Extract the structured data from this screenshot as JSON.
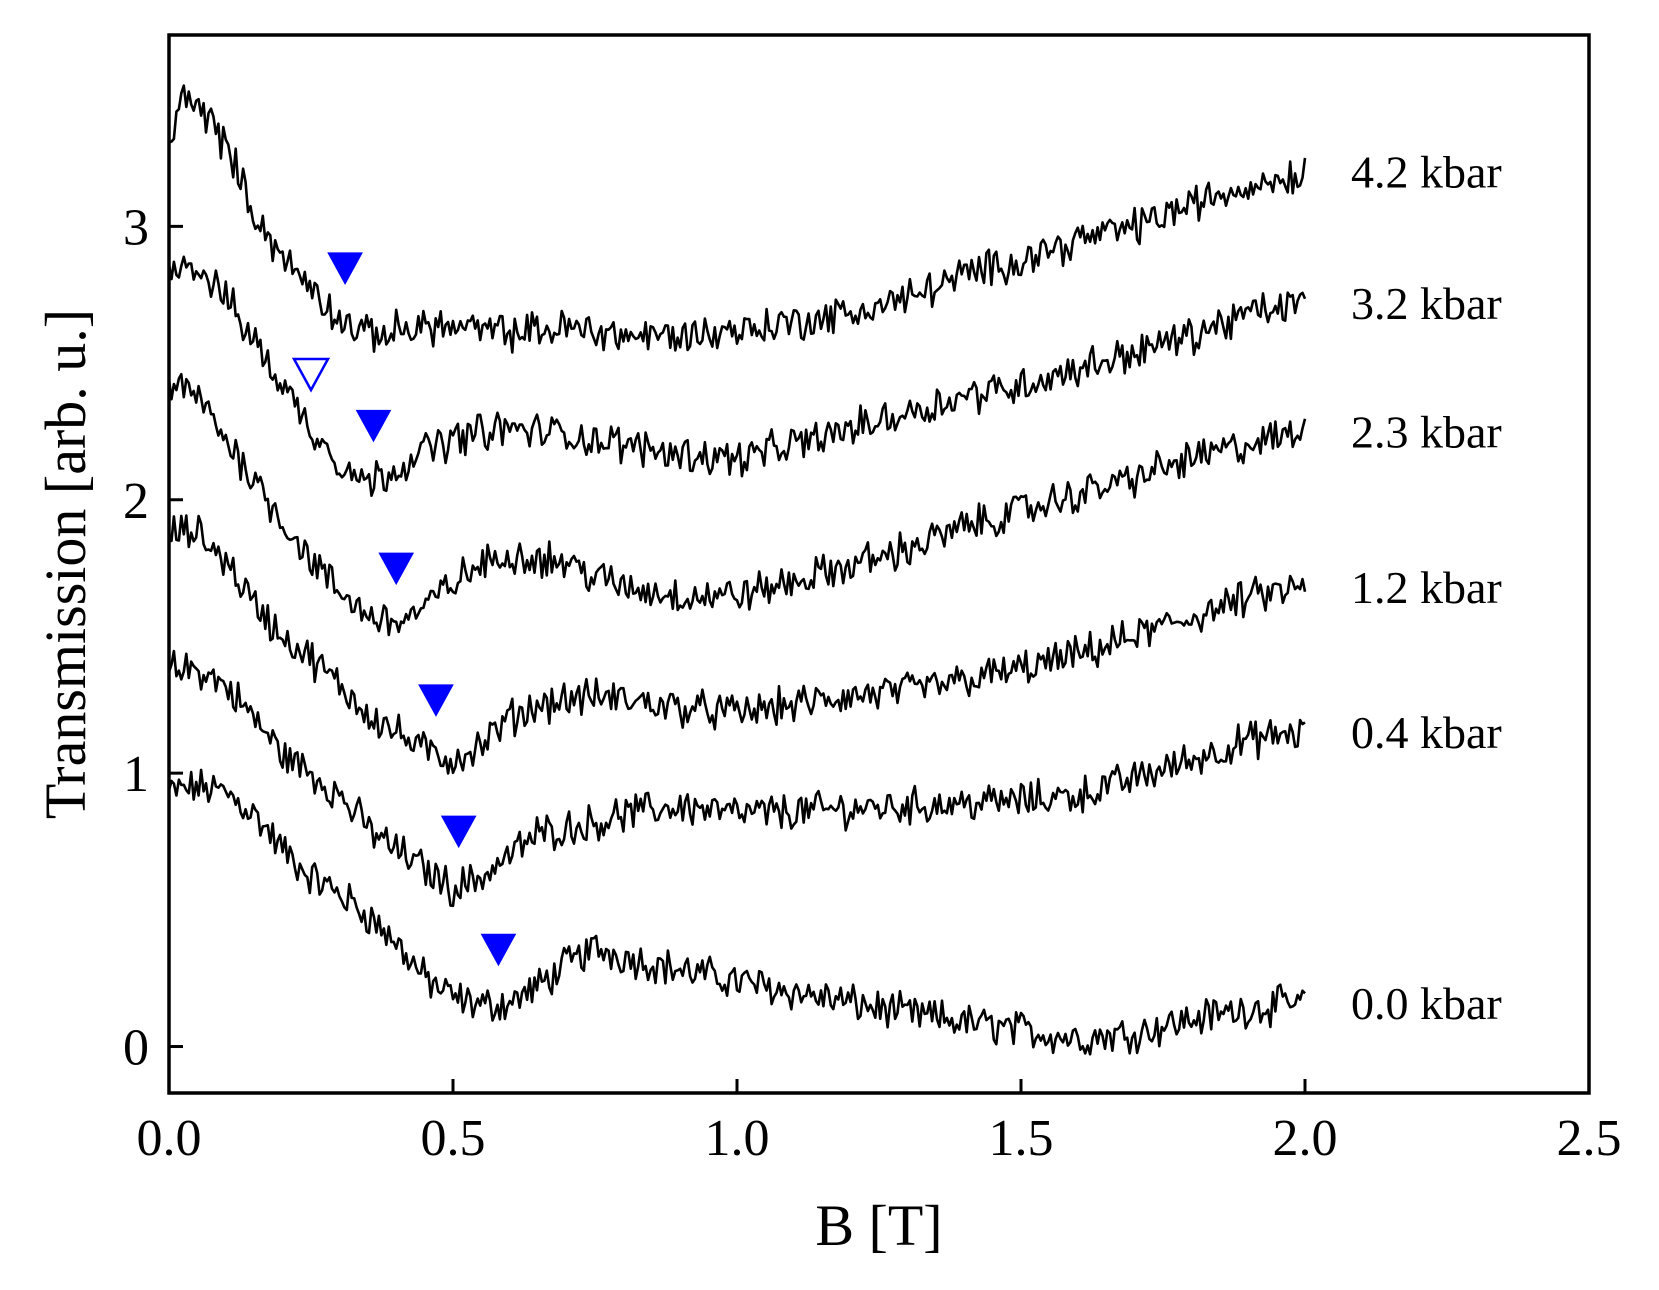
{
  "chart_data": {
    "type": "line",
    "title": "",
    "xlabel": "B [T]",
    "ylabel": "Transmission [arb. u.]",
    "xlim": [
      0.0,
      2.5
    ],
    "ylim": [
      -0.17,
      3.7
    ],
    "xticks": [
      "0.0",
      "0.5",
      "1.0",
      "1.5",
      "2.0",
      "2.5"
    ],
    "yticks": [
      "0",
      "1",
      "2",
      "3"
    ],
    "grid": false,
    "legend": "none",
    "series": [
      {
        "name": "0.0 kbar",
        "x": [
          0.0,
          0.05,
          0.1,
          0.15,
          0.2,
          0.25,
          0.3,
          0.35,
          0.4,
          0.45,
          0.5,
          0.55,
          0.6,
          0.65,
          0.7,
          0.75,
          0.8,
          0.9,
          1.0,
          1.1,
          1.2,
          1.3,
          1.4,
          1.5,
          1.6,
          1.7,
          1.8,
          1.9,
          2.0
        ],
        "y": [
          0.93,
          0.95,
          0.93,
          0.85,
          0.72,
          0.62,
          0.56,
          0.48,
          0.38,
          0.25,
          0.18,
          0.15,
          0.16,
          0.22,
          0.3,
          0.36,
          0.33,
          0.28,
          0.24,
          0.2,
          0.16,
          0.12,
          0.09,
          0.06,
          0.03,
          0.05,
          0.1,
          0.14,
          0.16
        ],
        "marker_x": 0.58,
        "marker_filled": true
      },
      {
        "name": "0.4 kbar",
        "x": [
          0.0,
          0.05,
          0.1,
          0.15,
          0.2,
          0.25,
          0.3,
          0.35,
          0.4,
          0.45,
          0.5,
          0.55,
          0.6,
          0.65,
          0.7,
          0.75,
          0.8,
          0.9,
          1.0,
          1.1,
          1.2,
          1.3,
          1.4,
          1.5,
          1.6,
          1.7,
          1.8,
          1.9,
          2.0
        ],
        "y": [
          1.38,
          1.38,
          1.32,
          1.2,
          1.07,
          1.0,
          0.92,
          0.8,
          0.72,
          0.65,
          0.58,
          0.62,
          0.7,
          0.78,
          0.8,
          0.82,
          0.85,
          0.88,
          0.85,
          0.86,
          0.87,
          0.88,
          0.89,
          0.9,
          0.92,
          0.98,
          1.05,
          1.12,
          1.15
        ],
        "marker_x": 0.51,
        "marker_filled": true
      },
      {
        "name": "1.2 kbar",
        "x": [
          0.0,
          0.05,
          0.1,
          0.15,
          0.2,
          0.25,
          0.3,
          0.35,
          0.4,
          0.45,
          0.5,
          0.55,
          0.6,
          0.65,
          0.7,
          0.75,
          0.8,
          0.9,
          1.0,
          1.1,
          1.2,
          1.3,
          1.4,
          1.5,
          1.6,
          1.7,
          1.8,
          1.9,
          2.0
        ],
        "y": [
          1.88,
          1.88,
          1.78,
          1.62,
          1.5,
          1.42,
          1.32,
          1.22,
          1.15,
          1.08,
          1.05,
          1.1,
          1.2,
          1.25,
          1.27,
          1.28,
          1.27,
          1.24,
          1.22,
          1.25,
          1.28,
          1.3,
          1.34,
          1.38,
          1.43,
          1.5,
          1.57,
          1.64,
          1.68
        ],
        "marker_x": 0.47,
        "marker_filled": true
      },
      {
        "name": "2.3 kbar",
        "x": [
          0.0,
          0.05,
          0.1,
          0.15,
          0.2,
          0.25,
          0.3,
          0.35,
          0.4,
          0.45,
          0.5,
          0.55,
          0.6,
          0.65,
          0.7,
          0.75,
          0.8,
          0.9,
          1.0,
          1.1,
          1.2,
          1.3,
          1.4,
          1.5,
          1.6,
          1.7,
          1.8,
          1.9,
          2.0
        ],
        "y": [
          2.42,
          2.38,
          2.22,
          2.08,
          1.92,
          1.78,
          1.66,
          1.58,
          1.55,
          1.6,
          1.7,
          1.76,
          1.8,
          1.79,
          1.77,
          1.72,
          1.68,
          1.65,
          1.65,
          1.7,
          1.76,
          1.82,
          1.9,
          1.96,
          2.02,
          2.08,
          2.15,
          2.2,
          2.25
        ],
        "marker_x": 0.4,
        "marker_filled": true
      },
      {
        "name": "3.2 kbar",
        "x": [
          0.0,
          0.05,
          0.1,
          0.15,
          0.2,
          0.25,
          0.3,
          0.35,
          0.4,
          0.45,
          0.5,
          0.55,
          0.6,
          0.65,
          0.7,
          0.75,
          0.8,
          0.9,
          1.0,
          1.1,
          1.2,
          1.3,
          1.4,
          1.5,
          1.6,
          1.7,
          1.8,
          1.9,
          2.0
        ],
        "y": [
          2.88,
          2.85,
          2.74,
          2.58,
          2.42,
          2.26,
          2.14,
          2.06,
          2.12,
          2.18,
          2.22,
          2.25,
          2.26,
          2.25,
          2.24,
          2.22,
          2.2,
          2.17,
          2.15,
          2.2,
          2.26,
          2.32,
          2.38,
          2.42,
          2.48,
          2.54,
          2.6,
          2.68,
          2.72
        ],
        "marker_x": 0.36,
        "marker_filled": true,
        "marker2_x": 0.25,
        "marker2_filled": false
      },
      {
        "name": "4.2 kbar",
        "x": [
          0.0,
          0.03,
          0.06,
          0.1,
          0.15,
          0.2,
          0.25,
          0.3,
          0.35,
          0.4,
          0.45,
          0.5,
          0.55,
          0.6,
          0.65,
          0.7,
          0.75,
          0.8,
          0.9,
          1.0,
          1.1,
          1.2,
          1.3,
          1.4,
          1.5,
          1.6,
          1.7,
          1.8,
          1.9,
          2.0
        ],
        "y": [
          3.3,
          3.5,
          3.42,
          3.3,
          3.05,
          2.88,
          2.78,
          2.66,
          2.6,
          2.62,
          2.64,
          2.63,
          2.62,
          2.61,
          2.62,
          2.63,
          2.62,
          2.6,
          2.6,
          2.62,
          2.65,
          2.68,
          2.74,
          2.82,
          2.88,
          2.95,
          3.0,
          3.08,
          3.15,
          3.2
        ],
        "marker_x": 0.31,
        "marker_filled": true
      }
    ],
    "colors": {
      "line": "#000000",
      "marker": "#0000ff"
    }
  }
}
